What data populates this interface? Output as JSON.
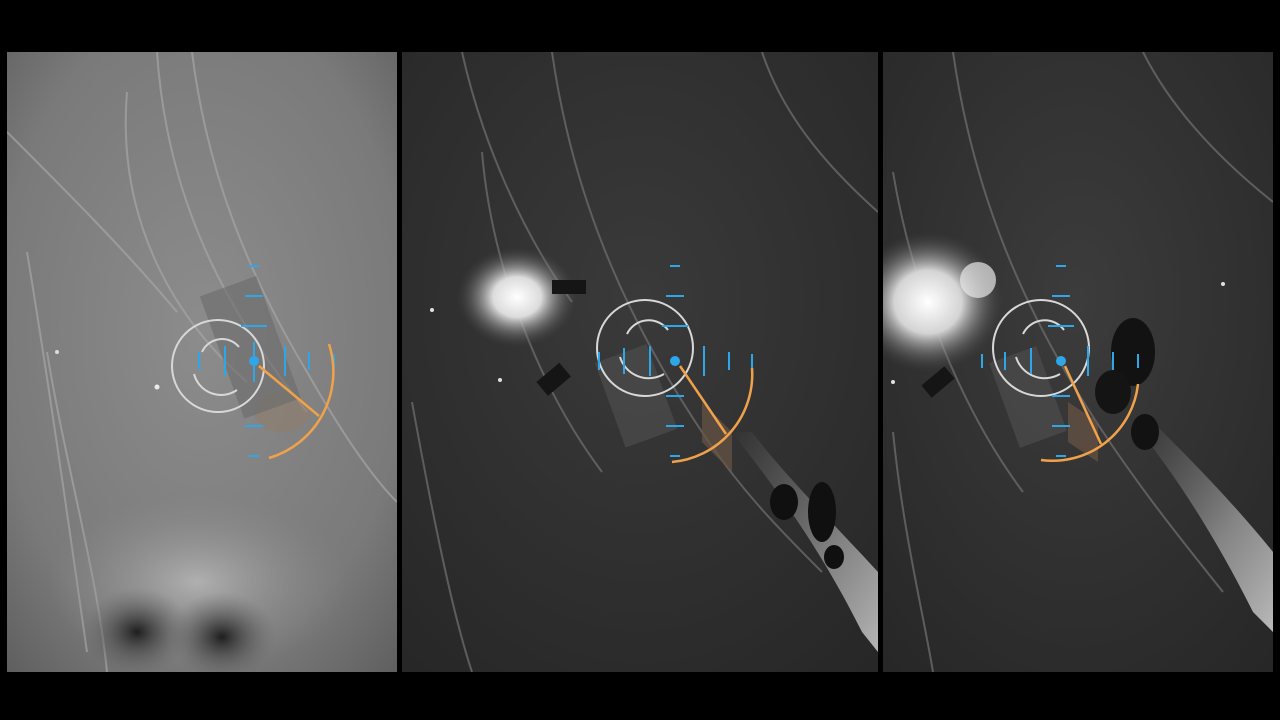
{
  "frame": {
    "panel_count": 3,
    "letterbox_color": "#000000"
  },
  "colors": {
    "reticle_blue": "#2fa6e8",
    "bearing_orange": "#f0a24a",
    "target_circle": "#d8d8d8",
    "terrain_light": "#9a9a9a",
    "terrain_dark": "#2c2c2c"
  },
  "panels": [
    {
      "id": "panel-1",
      "style": "light",
      "has_flash": false,
      "has_smoke": false
    },
    {
      "id": "panel-2",
      "style": "dark",
      "has_flash": true,
      "has_smoke": true
    },
    {
      "id": "panel-3",
      "style": "dark",
      "has_flash": true,
      "has_smoke": true
    }
  ],
  "icons": [
    "crosshair-reticle-icon",
    "target-circle-icon",
    "bearing-arc-icon"
  ]
}
